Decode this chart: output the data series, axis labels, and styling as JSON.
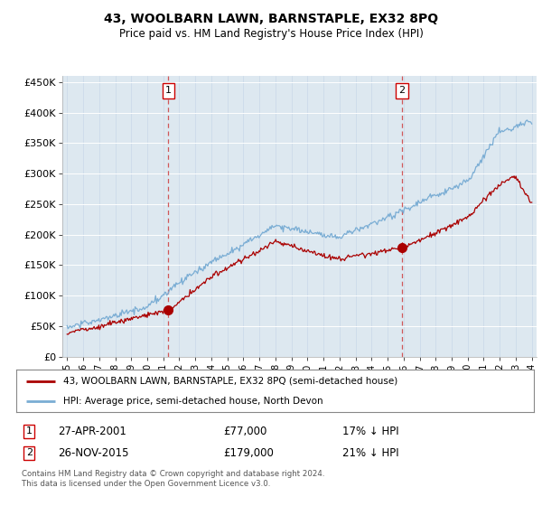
{
  "title": "43, WOOLBARN LAWN, BARNSTAPLE, EX32 8PQ",
  "subtitle": "Price paid vs. HM Land Registry's House Price Index (HPI)",
  "legend_line1": "43, WOOLBARN LAWN, BARNSTAPLE, EX32 8PQ (semi-detached house)",
  "legend_line2": "HPI: Average price, semi-detached house, North Devon",
  "annotation1_date": "27-APR-2001",
  "annotation1_price": "£77,000",
  "annotation1_hpi": "17% ↓ HPI",
  "annotation2_date": "26-NOV-2015",
  "annotation2_price": "£179,000",
  "annotation2_hpi": "21% ↓ HPI",
  "footnote": "Contains HM Land Registry data © Crown copyright and database right 2024.\nThis data is licensed under the Open Government Licence v3.0.",
  "hpi_color": "#7aadd4",
  "price_color": "#aa0000",
  "background_color": "#dde8f0",
  "ylim": [
    0,
    460000
  ],
  "yticks": [
    0,
    50000,
    100000,
    150000,
    200000,
    250000,
    300000,
    350000,
    400000,
    450000
  ],
  "sale1_x": 2001.32,
  "sale1_y": 77000,
  "sale2_x": 2015.9,
  "sale2_y": 179000,
  "xlim_left": 1994.7,
  "xlim_right": 2024.3
}
